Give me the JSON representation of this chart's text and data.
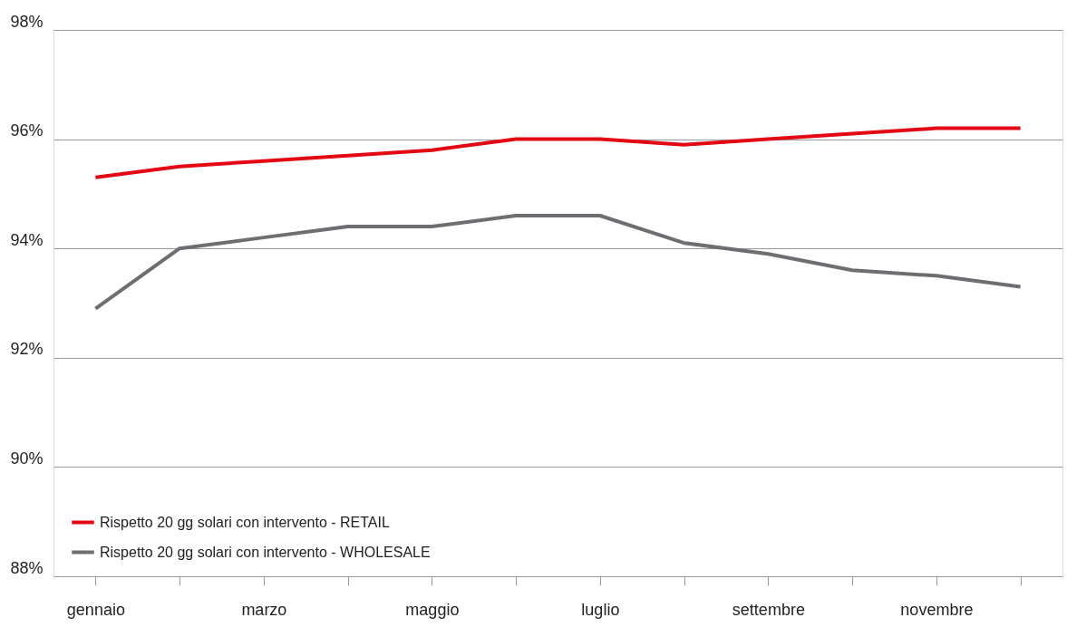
{
  "chart_data": {
    "type": "line",
    "categories": [
      "gennaio",
      null,
      "marzo",
      null,
      "maggio",
      null,
      "luglio",
      null,
      "settembre",
      null,
      "novembre",
      null
    ],
    "series": [
      {
        "name": "Rispetto 20 gg solari con intervento - RETAIL",
        "color": "#e30613",
        "values": [
          95.3,
          95.5,
          95.6,
          95.7,
          95.8,
          96.0,
          96.0,
          95.9,
          96.0,
          96.1,
          96.2,
          96.2
        ]
      },
      {
        "name": "Rispetto 20 gg solari con intervento - WHOLESALE",
        "color": "#6d6e71",
        "values": [
          92.9,
          94.0,
          94.2,
          94.4,
          94.4,
          94.6,
          94.6,
          94.1,
          93.9,
          93.6,
          93.5,
          93.3
        ]
      }
    ],
    "ylim": [
      88,
      98
    ],
    "yticks": [
      {
        "value": 88,
        "label": "88%"
      },
      {
        "value": 90,
        "label": "90%"
      },
      {
        "value": 92,
        "label": "92%"
      },
      {
        "value": 94,
        "label": "94%"
      },
      {
        "value": 96,
        "label": "96%"
      },
      {
        "value": 98,
        "label": "98%"
      }
    ],
    "grid": "y",
    "legend": "bottom left",
    "marker": "none",
    "line_style": "solid"
  }
}
